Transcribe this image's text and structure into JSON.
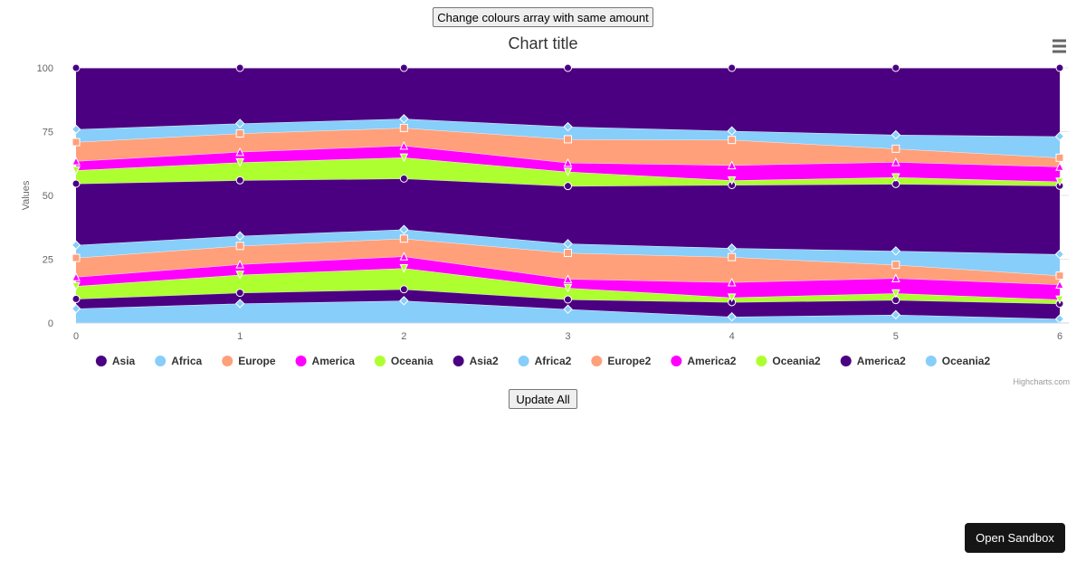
{
  "buttons": {
    "change_colours": "Change colours array with same amount",
    "update_all": "Update All",
    "open_sandbox": "Open Sandbox"
  },
  "menu": {
    "icon": "hamburger-menu-icon"
  },
  "credits": "Highcharts.com",
  "chart_data": {
    "type": "area",
    "stacking": "percent",
    "title": "Chart title",
    "xlabel": "",
    "ylabel": "Values",
    "x": [
      0,
      1,
      2,
      3,
      4,
      5,
      6
    ],
    "ylim": [
      0,
      100
    ],
    "yticks": [
      0,
      25,
      50,
      75,
      100
    ],
    "grid": true,
    "legend_position": "bottom",
    "series": [
      {
        "name": "Asia",
        "color": "#4B0082",
        "marker": "circle",
        "values": [
          23.5,
          21.7,
          20.1,
          23.0,
          24.5,
          26.0,
          26.9
        ]
      },
      {
        "name": "Africa",
        "color": "#87CEFA",
        "marker": "diamond",
        "values": [
          4.9,
          3.9,
          3.6,
          4.9,
          3.5,
          5.4,
          8.4
        ]
      },
      {
        "name": "Europe",
        "color": "#FFA07A",
        "marker": "square",
        "values": [
          7.3,
          7.2,
          7.0,
          9.2,
          9.8,
          5.2,
          3.5
        ]
      },
      {
        "name": "America",
        "color": "#FF00FF",
        "marker": "triangle",
        "values": [
          3.5,
          4.1,
          4.7,
          3.5,
          5.9,
          5.9,
          5.9
        ]
      },
      {
        "name": "Oceania",
        "color": "#ADFF2F",
        "marker": "triangle-down",
        "values": [
          5.1,
          7.0,
          8.3,
          5.6,
          1.8,
          2.6,
          1.6
        ]
      },
      {
        "name": "Asia2",
        "color": "#4B0082",
        "marker": "circle",
        "values": [
          23.5,
          21.7,
          20.1,
          22.5,
          24.5,
          26.0,
          26.9
        ]
      },
      {
        "name": "Africa2",
        "color": "#87CEFA",
        "marker": "diamond",
        "values": [
          4.9,
          3.9,
          3.6,
          3.6,
          3.5,
          5.4,
          8.4
        ]
      },
      {
        "name": "Europe2",
        "color": "#FFA07A",
        "marker": "square",
        "values": [
          7.3,
          7.2,
          7.0,
          10.2,
          9.8,
          5.2,
          3.5
        ]
      },
      {
        "name": "America2",
        "color": "#FF00FF",
        "marker": "triangle",
        "values": [
          3.5,
          4.1,
          4.7,
          3.5,
          5.9,
          5.9,
          5.9
        ]
      },
      {
        "name": "Oceania2",
        "color": "#ADFF2F",
        "marker": "triangle-down",
        "values": [
          4.9,
          7.0,
          8.3,
          4.5,
          1.8,
          2.6,
          1.6
        ]
      },
      {
        "name": "America2",
        "color": "#4B0082",
        "marker": "circle",
        "values": [
          3.7,
          4.2,
          4.5,
          3.8,
          5.7,
          5.7,
          6.0
        ]
      },
      {
        "name": "Oceania2",
        "color": "#87CEFA",
        "marker": "diamond",
        "values": [
          5.5,
          7.6,
          8.8,
          5.4,
          2.4,
          3.2,
          1.6
        ]
      }
    ]
  }
}
